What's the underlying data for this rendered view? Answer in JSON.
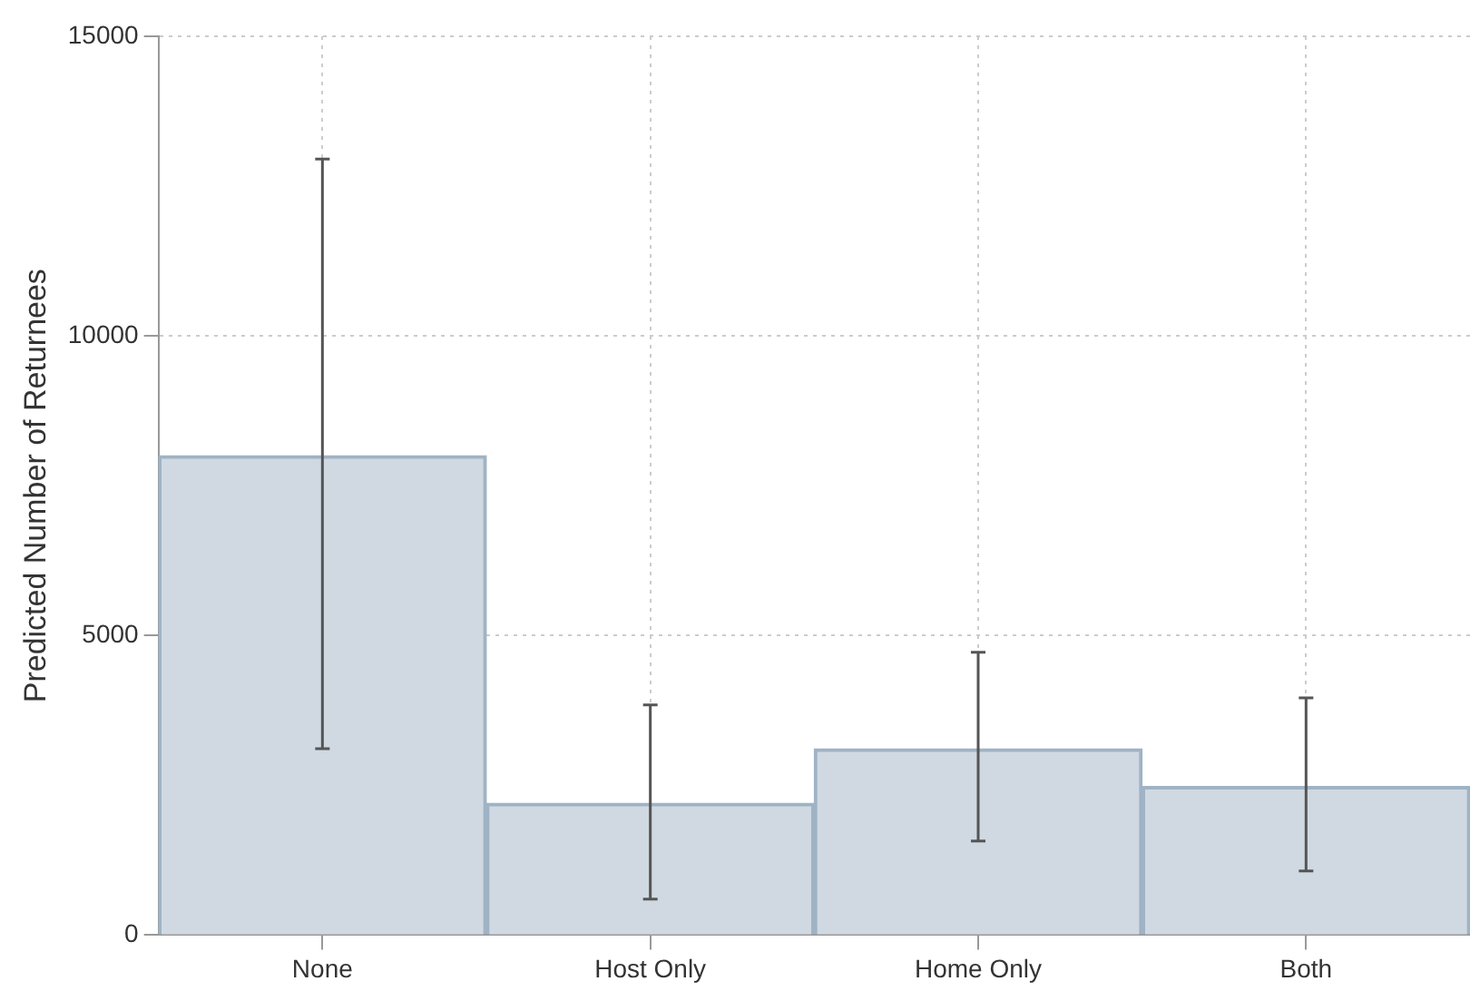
{
  "chart_data": {
    "type": "bar",
    "ylabel": "Predicted Number of Returnees",
    "categories": [
      "None",
      "Host Only",
      "Home Only",
      "Both"
    ],
    "values": [
      8000,
      2200,
      3110,
      2480
    ],
    "errors": [
      [
        3110,
        12950
      ],
      [
        600,
        3840
      ],
      [
        1570,
        4720
      ],
      [
        1070,
        3960
      ]
    ],
    "color": "#d0d9e2",
    "ylim": [
      0,
      15000
    ],
    "yticks": [
      0,
      5000,
      10000,
      15000
    ],
    "grid": true,
    "legend": false
  }
}
